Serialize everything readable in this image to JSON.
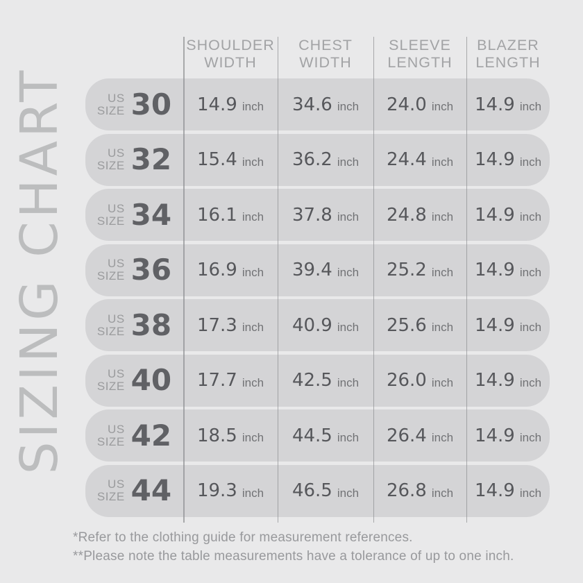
{
  "title": {
    "vertical_text": "SIZING CHART"
  },
  "table": {
    "headers": [
      {
        "line1": "SHOULDER",
        "line2": "WIDTH"
      },
      {
        "line1": "CHEST",
        "line2": "WIDTH"
      },
      {
        "line1": "SLEEVE",
        "line2": "LENGTH"
      },
      {
        "line1": "BLAZER",
        "line2": "LENGTH"
      }
    ],
    "size_label": {
      "line1": "US",
      "line2": "SIZE"
    },
    "unit": "inch",
    "rows": [
      {
        "size": "30",
        "shoulder_width": "14.9",
        "chest_width": "34.6",
        "sleeve_length": "24.0",
        "blazer_length": "14.9"
      },
      {
        "size": "32",
        "shoulder_width": "15.4",
        "chest_width": "36.2",
        "sleeve_length": "24.4",
        "blazer_length": "14.9"
      },
      {
        "size": "34",
        "shoulder_width": "16.1",
        "chest_width": "37.8",
        "sleeve_length": "24.8",
        "blazer_length": "14.9"
      },
      {
        "size": "36",
        "shoulder_width": "16.9",
        "chest_width": "39.4",
        "sleeve_length": "25.2",
        "blazer_length": "14.9"
      },
      {
        "size": "38",
        "shoulder_width": "17.3",
        "chest_width": "40.9",
        "sleeve_length": "25.6",
        "blazer_length": "14.9"
      },
      {
        "size": "40",
        "shoulder_width": "17.7",
        "chest_width": "42.5",
        "sleeve_length": "26.0",
        "blazer_length": "14.9"
      },
      {
        "size": "42",
        "shoulder_width": "18.5",
        "chest_width": "44.5",
        "sleeve_length": "26.4",
        "blazer_length": "14.9"
      },
      {
        "size": "44",
        "shoulder_width": "19.3",
        "chest_width": "46.5",
        "sleeve_length": "26.8",
        "blazer_length": "14.9"
      }
    ]
  },
  "footnotes": {
    "note1": "*Refer to the clothing guide for measurement references.",
    "note2": "**Please note the table measurements have a tolerance of up to one inch."
  },
  "colors": {
    "background": "#e9e9ea",
    "row_pill": "#d4d4d6",
    "divider": "#909194",
    "header_text": "#a2a3a5",
    "vertical_title": "#bcbdbe",
    "size_number": "#606165",
    "value_number": "#56575b",
    "unit_text": "#717275",
    "footnote_text": "#98999c",
    "size_label": "#9a9b9d"
  },
  "chart_data": {
    "type": "table",
    "title": "SIZING CHART",
    "unit": "inch",
    "categories": [
      "30",
      "32",
      "34",
      "36",
      "38",
      "40",
      "42",
      "44"
    ],
    "series": [
      {
        "name": "Shoulder Width",
        "values": [
          14.9,
          15.4,
          16.1,
          16.9,
          17.3,
          17.7,
          18.5,
          19.3
        ]
      },
      {
        "name": "Chest Width",
        "values": [
          34.6,
          36.2,
          37.8,
          39.4,
          40.9,
          42.5,
          44.5,
          46.5
        ]
      },
      {
        "name": "Sleeve Length",
        "values": [
          24.0,
          24.4,
          24.8,
          25.2,
          25.6,
          26.0,
          26.4,
          26.8
        ]
      },
      {
        "name": "Blazer Length",
        "values": [
          14.9,
          14.9,
          14.9,
          14.9,
          14.9,
          14.9,
          14.9,
          14.9
        ]
      }
    ],
    "notes": [
      "*Refer to the clothing guide for measurement references.",
      "**Please note the table measurements have a tolerance of up to one inch."
    ]
  }
}
